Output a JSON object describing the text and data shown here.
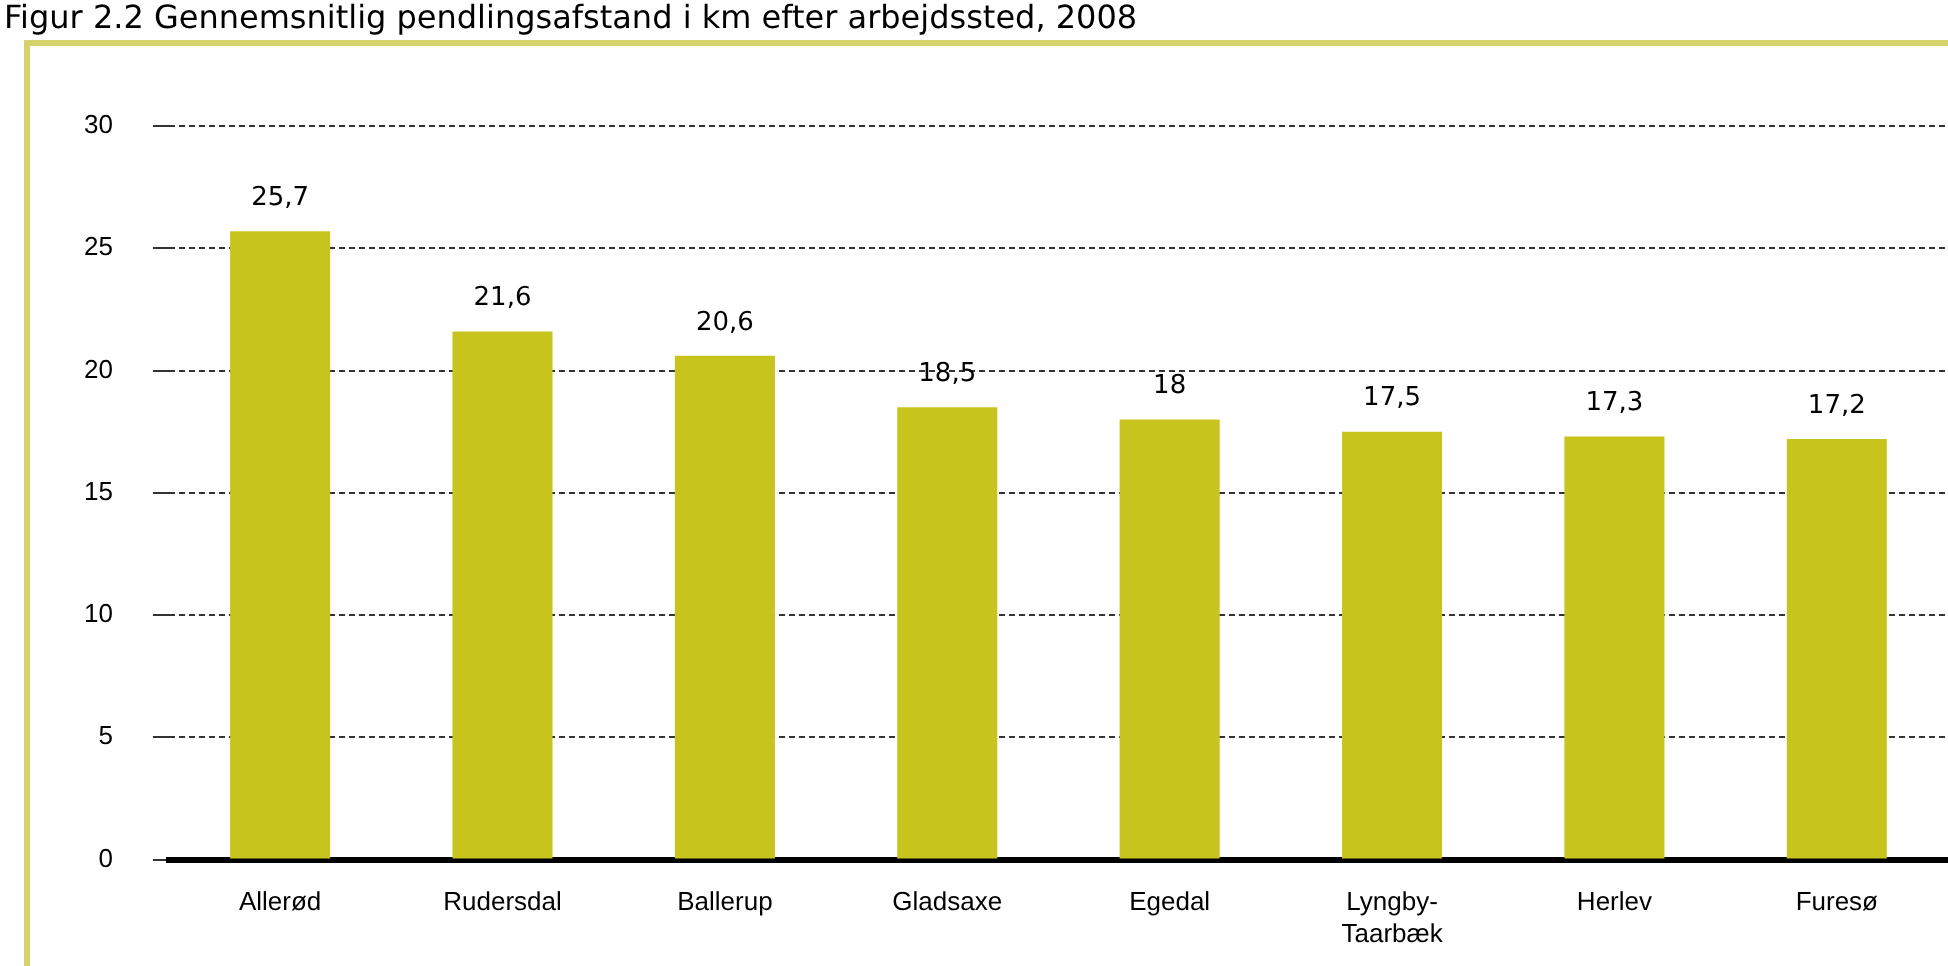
{
  "chart_data": {
    "type": "bar",
    "title": "Figur 2.2 Gennemsnitlig pendlingsafstand i km efter arbejdssted, 2008",
    "categories": [
      "Allerød",
      "Rudersdal",
      "Ballerup",
      "Gladsaxe",
      "Egedal",
      "Lyngby-Taarbæk",
      "Herlev",
      "Furesø"
    ],
    "values": [
      25.7,
      21.6,
      20.6,
      18.5,
      18,
      17.5,
      17.3,
      17.2
    ],
    "value_labels": [
      "25,7",
      "21,6",
      "20,6",
      "18,5",
      "18",
      "17,5",
      "17,3",
      "17,2"
    ],
    "color": "#c8c41e",
    "ylim": [
      0,
      30
    ],
    "yticks": [
      0,
      5,
      10,
      15,
      20,
      25,
      30
    ],
    "grid": "y"
  }
}
